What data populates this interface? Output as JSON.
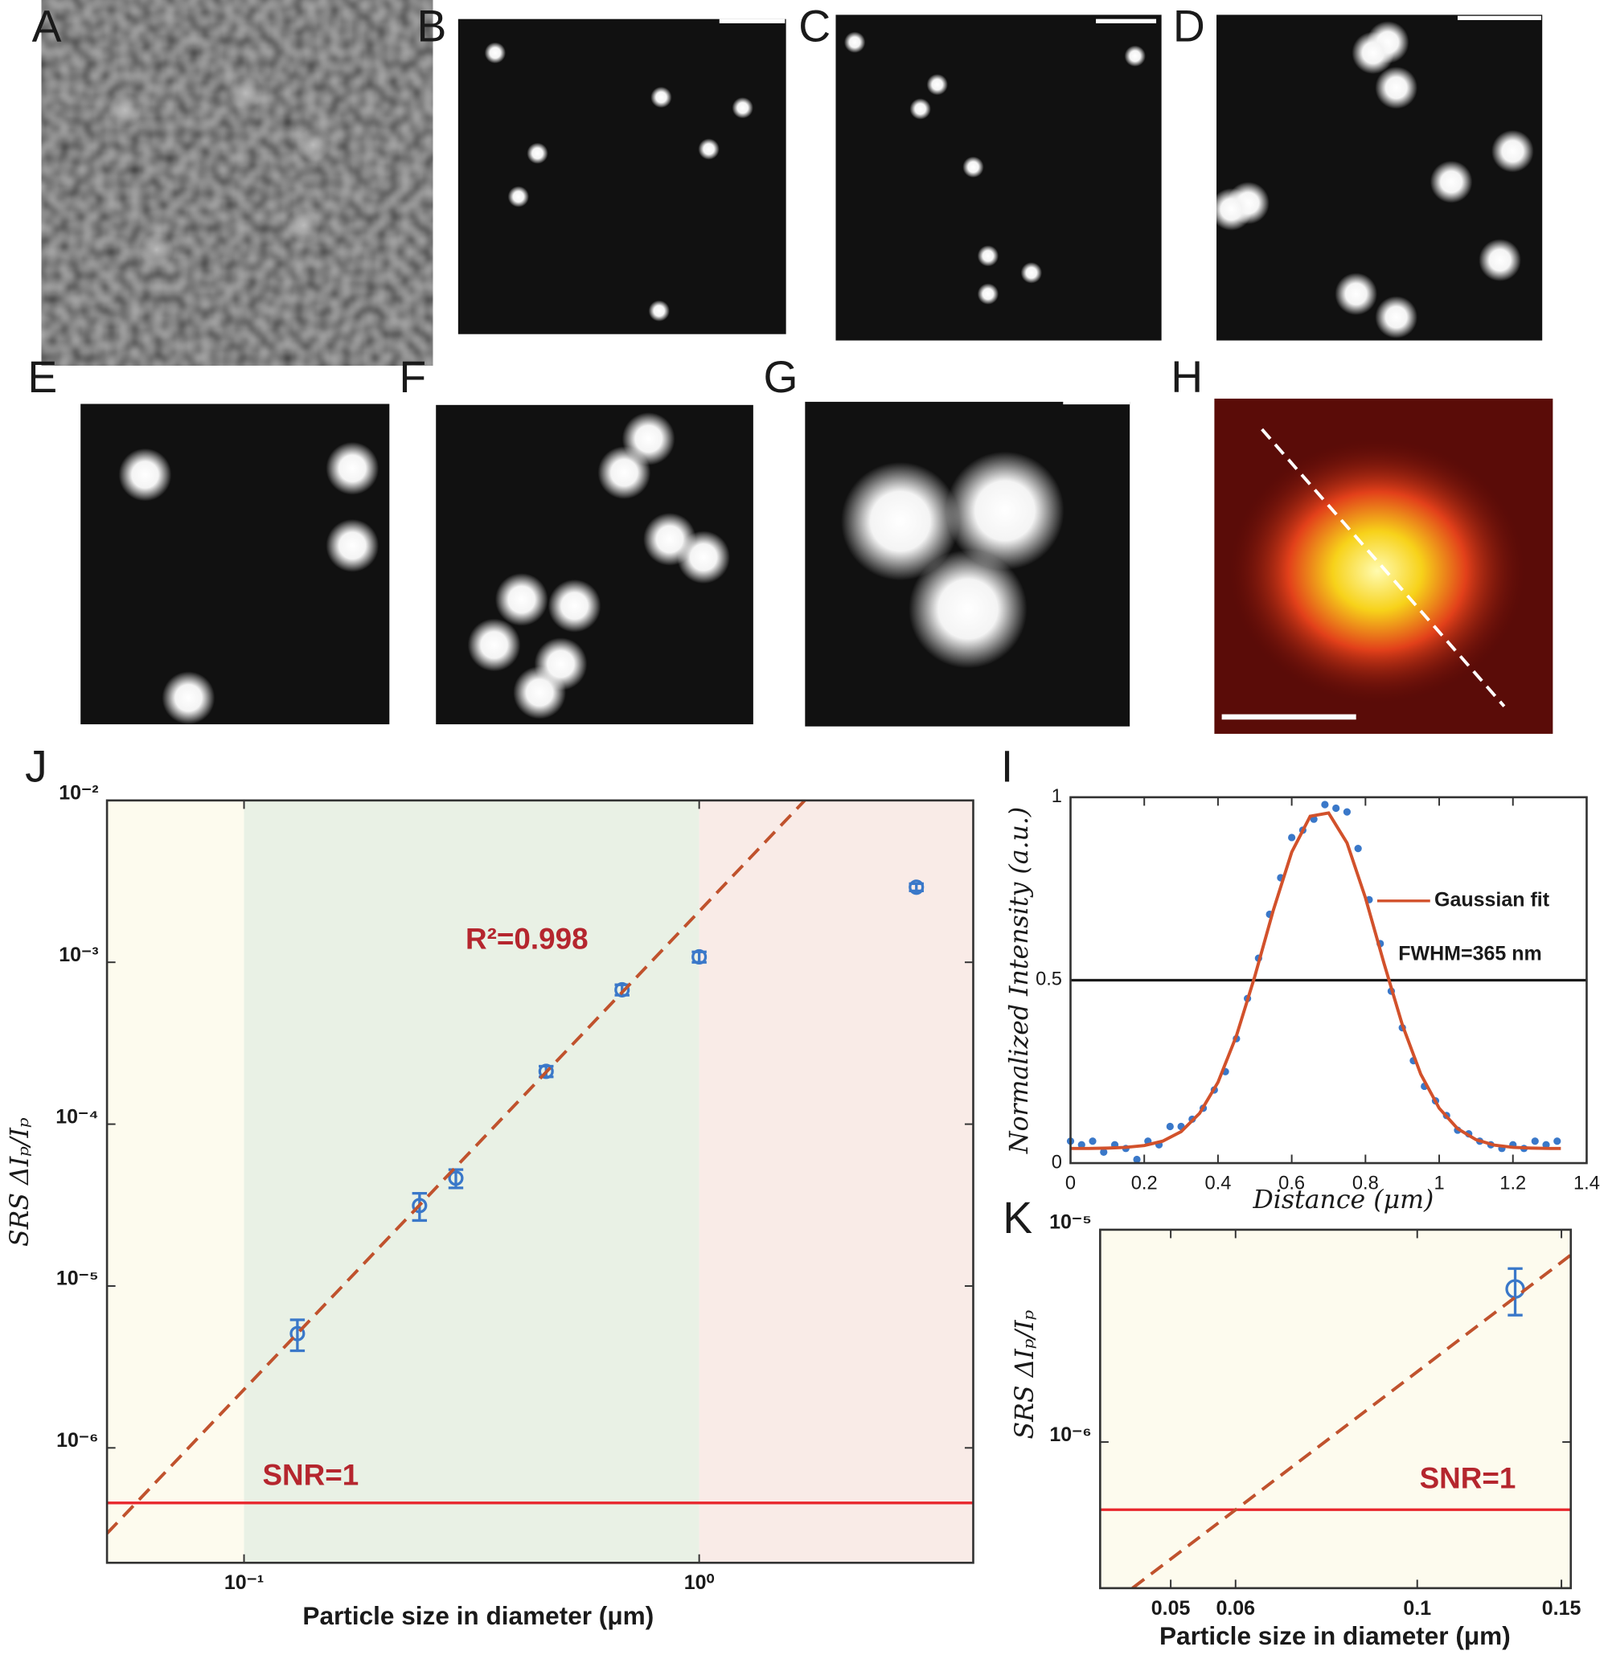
{
  "panels": [
    "A",
    "B",
    "C",
    "D",
    "E",
    "F",
    "G",
    "H"
  ],
  "chart_data": [
    {
      "type": "scatter",
      "panel": "J",
      "log_x": true,
      "log_y": true,
      "xlim": [
        0.05,
        4
      ],
      "ylim": [
        1.95e-07,
        0.01
      ],
      "xticks": [
        {
          "value": 0.1,
          "label": "10⁻¹"
        },
        {
          "value": 1,
          "label": "10⁰"
        }
      ],
      "yticks": [
        {
          "value": 0.01,
          "label": "10⁻²"
        },
        {
          "value": 0.001,
          "label": "10⁻³"
        },
        {
          "value": 0.0001,
          "label": "10⁻⁴"
        },
        {
          "value": 1e-05,
          "label": "10⁻⁵"
        },
        {
          "value": 1e-06,
          "label": "10⁻⁶"
        }
      ],
      "xlabel": "Particle size in diameter (μm)",
      "ylabel": "SRS ΔIₚ/Iₚ",
      "regions": [
        {
          "from": 0.05,
          "to": 0.1,
          "color": "#fdfbee"
        },
        {
          "from": 0.1,
          "to": 1,
          "color": "#e9f1e5"
        },
        {
          "from": 1,
          "to": 4,
          "color": "#f9ebe7"
        }
      ],
      "hline": 4.57e-07,
      "hline_color": "#e8262c",
      "annotations": [
        "R²=0.998",
        "SNR=1"
      ],
      "series": [
        {
          "marker": "open-circle",
          "color": "#3a78c9",
          "x": [
            0.131,
            0.243,
            0.292,
            0.461,
            0.677,
            1.0,
            3.0
          ],
          "values": [
            5.08e-06,
            3.14e-05,
            4.64e-05,
            0.000212,
            0.000676,
            0.00108,
            0.00291
          ],
          "errors": [
            1.1e-06,
            6e-06,
            6e-06,
            1.6e-05,
            5e-05,
            8e-05,
            0.00015
          ]
        },
        {
          "style": "dashed",
          "color": "#c0522d",
          "x": [
            0.05,
            1.706
          ],
          "values": [
            2.96e-07,
            0.01
          ]
        }
      ]
    },
    {
      "type": "scatter",
      "panel": "I",
      "log_x": false,
      "log_y": false,
      "xlim": [
        0,
        1.4
      ],
      "ylim": [
        0,
        1
      ],
      "xticks": [
        0,
        0.2,
        0.4,
        0.6,
        0.8,
        1,
        1.2,
        1.4
      ],
      "yticks": [
        0,
        0.5,
        1
      ],
      "xlabel": "Distance (μm)",
      "ylabel": "Normalized Intensity (a.u.)",
      "hline": 0.5,
      "hline_color": "#1a1a1a",
      "legend": "upper right",
      "annotations": [
        "FWHM=365 nm"
      ],
      "series": [
        {
          "marker": "dot",
          "color": "#3a78c9",
          "x": [
            0,
            0.03,
            0.06,
            0.09,
            0.12,
            0.15,
            0.18,
            0.21,
            0.24,
            0.27,
            0.3,
            0.33,
            0.36,
            0.39,
            0.42,
            0.45,
            0.48,
            0.51,
            0.54,
            0.57,
            0.6,
            0.63,
            0.66,
            0.69,
            0.72,
            0.75,
            0.78,
            0.81,
            0.84,
            0.87,
            0.9,
            0.93,
            0.96,
            0.99,
            1.02,
            1.05,
            1.08,
            1.11,
            1.14,
            1.17,
            1.2,
            1.23,
            1.26,
            1.29,
            1.32
          ],
          "values": [
            0.06,
            0.05,
            0.06,
            0.03,
            0.05,
            0.04,
            0.01,
            0.06,
            0.05,
            0.1,
            0.1,
            0.12,
            0.15,
            0.2,
            0.25,
            0.34,
            0.45,
            0.56,
            0.68,
            0.78,
            0.89,
            0.91,
            0.94,
            0.98,
            0.97,
            0.96,
            0.86,
            0.72,
            0.6,
            0.47,
            0.37,
            0.28,
            0.21,
            0.17,
            0.13,
            0.09,
            0.08,
            0.06,
            0.05,
            0.04,
            0.05,
            0.04,
            0.06,
            0.05,
            0.06
          ]
        },
        {
          "name": "Gaussian fit",
          "style": "solid",
          "color": "#d2512b",
          "x": [
            0,
            0.05,
            0.1,
            0.15,
            0.2,
            0.25,
            0.3,
            0.35,
            0.4,
            0.45,
            0.5,
            0.55,
            0.6,
            0.65,
            0.7,
            0.75,
            0.8,
            0.85,
            0.9,
            0.95,
            1.0,
            1.05,
            1.1,
            1.15,
            1.2,
            1.25,
            1.3,
            1.33
          ],
          "values": [
            0.04,
            0.04,
            0.041,
            0.043,
            0.048,
            0.06,
            0.086,
            0.136,
            0.221,
            0.348,
            0.511,
            0.691,
            0.85,
            0.948,
            0.957,
            0.875,
            0.725,
            0.547,
            0.378,
            0.243,
            0.15,
            0.094,
            0.064,
            0.049,
            0.043,
            0.041,
            0.04,
            0.04
          ]
        }
      ]
    },
    {
      "type": "scatter",
      "panel": "K",
      "log_x": true,
      "log_y": true,
      "xlim": [
        0.041,
        0.154
      ],
      "ylim": [
        2.05e-07,
        1e-05
      ],
      "xticks": [
        0.05,
        0.06,
        0.1,
        0.15
      ],
      "yticks": [
        {
          "value": 1e-05,
          "label": "10⁻⁵"
        },
        {
          "value": 1e-06,
          "label": "10⁻⁶"
        }
      ],
      "xlabel": "Particle size in diameter (μm)",
      "ylabel": "SRS ΔIₚ/Iₚ",
      "regions": [
        {
          "from": 0.041,
          "to": 0.154,
          "color": "#fdfbee"
        }
      ],
      "hline": 4.8e-07,
      "hline_color": "#e8262c",
      "annotations": [
        "SNR=1"
      ],
      "series": [
        {
          "marker": "open-circle",
          "color": "#3a78c9",
          "x": [
            0.1317
          ],
          "values": [
            5.26e-06
          ],
          "errors": [
            1.3e-06
          ]
        },
        {
          "style": "dashed",
          "color": "#c0522d",
          "x": [
            0.0449,
            0.154
          ],
          "values": [
            2.05e-07,
            7.6e-06
          ]
        }
      ]
    }
  ]
}
